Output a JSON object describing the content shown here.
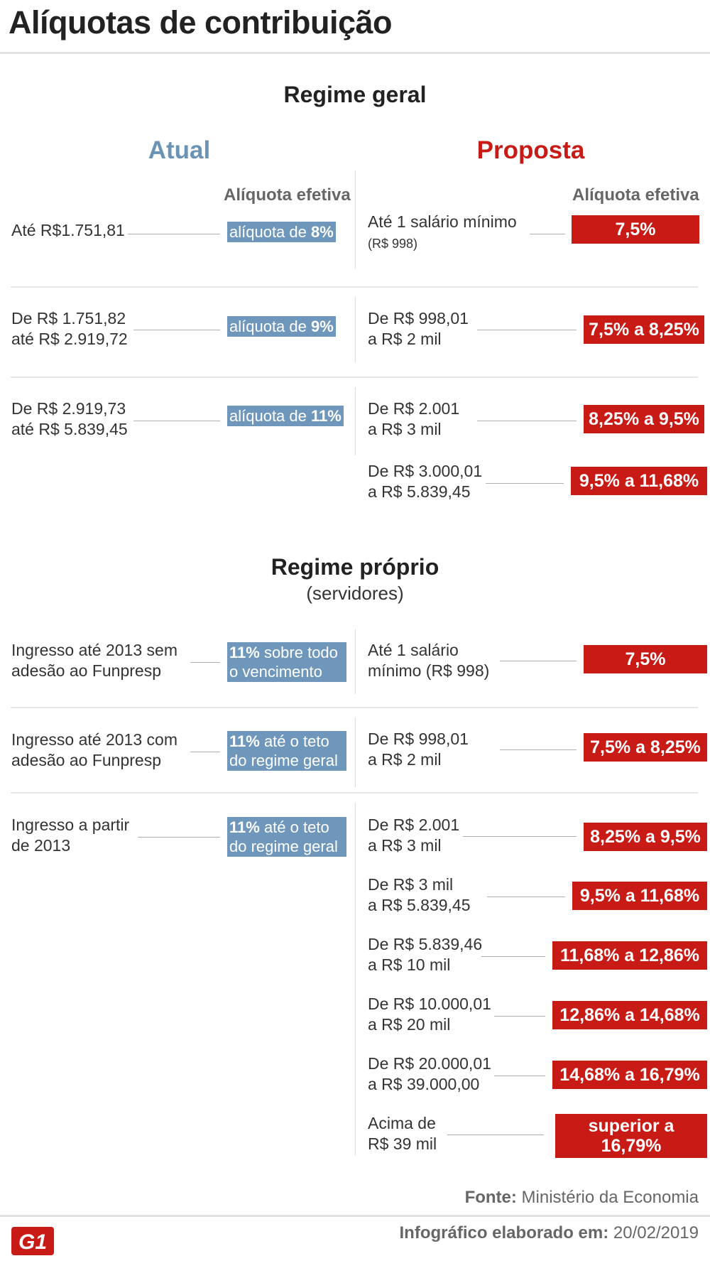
{
  "title": "Alíquotas de contribuição",
  "colors": {
    "atual": "#6b93b5",
    "proposta": "#c81b16",
    "blue_box": "#6f97bb",
    "red_box": "#c81b16"
  },
  "regime_geral": {
    "title": "Regime geral",
    "atual_label": "Atual",
    "proposta_label": "Proposta",
    "aliquota_efetiva": "Alíquota efetiva",
    "atual": [
      {
        "range": [
          "Até R$1.751,81"
        ],
        "rate_prefix": "alíquota de ",
        "rate_bold": "8%"
      },
      {
        "range": [
          "De R$ 1.751,82",
          "até R$ 2.919,72"
        ],
        "rate_prefix": "alíquota de ",
        "rate_bold": "9%"
      },
      {
        "range": [
          "De R$ 2.919,73",
          "até R$ 5.839,45"
        ],
        "rate_prefix": "alíquota de ",
        "rate_bold": "11%"
      }
    ],
    "proposta": [
      {
        "range": [
          "Até 1 salário mínimo",
          "(R$ 998)"
        ],
        "rate": "7,5%"
      },
      {
        "range": [
          "De R$ 998,01",
          "a R$ 2 mil"
        ],
        "rate": "7,5% a 8,25%"
      },
      {
        "range": [
          "De R$ 2.001",
          "a R$ 3 mil"
        ],
        "rate": "8,25% a 9,5%"
      },
      {
        "range": [
          "De R$ 3.000,01",
          "a R$ 5.839,45"
        ],
        "rate": "9,5% a 11,68%"
      }
    ]
  },
  "regime_proprio": {
    "title": "Regime próprio",
    "subtitle": "(servidores)",
    "atual": [
      {
        "range": [
          "Ingresso até 2013 sem",
          "adesão ao Funpresp"
        ],
        "rate_bold": "11%",
        "rate_rest1": " sobre todo",
        "rate_line2": "o vencimento"
      },
      {
        "range": [
          "Ingresso até 2013 com",
          "adesão ao Funpresp"
        ],
        "rate_bold": "11%",
        "rate_rest1": " até o teto",
        "rate_line2": "do regime geral"
      },
      {
        "range": [
          "Ingresso a partir",
          "de 2013"
        ],
        "rate_bold": "11%",
        "rate_rest1": " até o teto",
        "rate_line2": "do regime geral"
      }
    ],
    "proposta": [
      {
        "range": [
          "Até 1 salário",
          "mínimo (R$ 998)"
        ],
        "rate": "7,5%"
      },
      {
        "range": [
          "De R$ 998,01",
          "a R$ 2 mil"
        ],
        "rate": "7,5% a 8,25%"
      },
      {
        "range": [
          "De R$ 2.001",
          "a R$ 3 mil"
        ],
        "rate": "8,25% a 9,5%"
      },
      {
        "range": [
          "De R$ 3 mil",
          "a R$ 5.839,45"
        ],
        "rate": "9,5% a 11,68%"
      },
      {
        "range": [
          "De R$ 5.839,46",
          "a R$ 10 mil"
        ],
        "rate": "11,68% a 12,86%"
      },
      {
        "range": [
          "De R$ 10.000,01",
          "a R$ 20 mil"
        ],
        "rate": "12,86% a 14,68%"
      },
      {
        "range": [
          "De R$ 20.000,01",
          "a R$ 39.000,00"
        ],
        "rate": "14,68% a 16,79%"
      },
      {
        "range": [
          "Acima de",
          "R$ 39 mil"
        ],
        "rate": "superior a",
        "rate_line2": "16,79%"
      }
    ]
  },
  "footer": {
    "source_label": "Fonte:",
    "source_text": " Ministério da Economia",
    "made_label": "Infográfico elaborado em:",
    "made_date": " 20/02/2019",
    "logo": "G1"
  }
}
